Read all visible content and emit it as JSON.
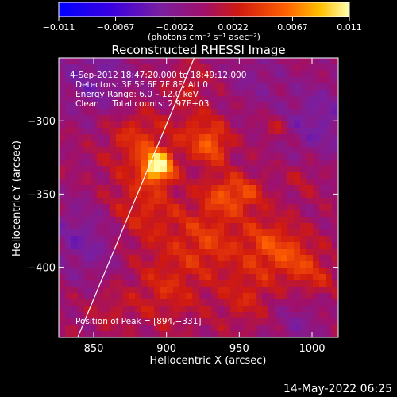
{
  "footer_timestamp": "14-May-2022 06:25",
  "colors": {
    "background": "#000000",
    "frame": "#ffffff",
    "limb_line": "#ffffff",
    "colormap": [
      "#0000ff",
      "#5500cc",
      "#7a1fa0",
      "#a0106a",
      "#d01a10",
      "#ff6000",
      "#ffc000",
      "#ffffb0"
    ]
  },
  "chart_data": {
    "type": "heatmap",
    "title": "Reconstructed RHESSI Image",
    "xlabel": "Heliocentric X (arcsec)",
    "ylabel": "Heliocentric Y (arcsec)",
    "xlim": [
      826,
      1018
    ],
    "ylim": [
      -448,
      -257
    ],
    "xticks": [
      850,
      900,
      950,
      1000
    ],
    "yticks": [
      -300,
      -350,
      -400
    ],
    "grid": false,
    "colorbar": {
      "position": "top",
      "range": [
        -0.011,
        0.011
      ],
      "tick_values": [
        -0.011,
        -0.0067,
        -0.0022,
        0.0022,
        0.0067,
        0.011
      ],
      "tick_labels": [
        "−0.011",
        "−0.0067",
        "−0.0022",
        "0.0022",
        "0.0067",
        "0.011"
      ],
      "label": "(photons cm⁻² s⁻¹ asec⁻²)"
    },
    "annotations": [
      "4-Sep-2012 18:47:20.000 to 18:49:12.000",
      "Detectors: 3F 5F 6F 7F 8F, Att 0",
      "Energy Range: 6.0 – 12.0 keV",
      "Clean     Total counts: 2.97E+03"
    ],
    "peak_label": "Position of Peak = [894,−331]",
    "peak": {
      "x": 894,
      "y": -331,
      "value": 0.011
    },
    "limb_line": [
      [
        839,
        -448
      ],
      [
        919,
        -257
      ]
    ],
    "sources": [
      {
        "x": 894,
        "y": -331,
        "sigma": 7,
        "amp": 0.011
      },
      {
        "x": 880,
        "y": -312,
        "sigma": 14,
        "amp": 0.0035
      },
      {
        "x": 882,
        "y": -360,
        "sigma": 20,
        "amp": 0.0034
      },
      {
        "x": 922,
        "y": -308,
        "sigma": 12,
        "amp": 0.0032
      },
      {
        "x": 932,
        "y": -318,
        "sigma": 8,
        "amp": 0.004
      },
      {
        "x": 938,
        "y": -350,
        "sigma": 10,
        "amp": 0.0038
      },
      {
        "x": 955,
        "y": -350,
        "sigma": 9,
        "amp": 0.0034
      },
      {
        "x": 928,
        "y": -382,
        "sigma": 16,
        "amp": 0.0036
      },
      {
        "x": 970,
        "y": -385,
        "sigma": 14,
        "amp": 0.0042
      },
      {
        "x": 990,
        "y": -395,
        "sigma": 11,
        "amp": 0.003
      },
      {
        "x": 900,
        "y": -415,
        "sigma": 17,
        "amp": 0.0028
      },
      {
        "x": 955,
        "y": -420,
        "sigma": 14,
        "amp": 0.0026
      },
      {
        "x": 862,
        "y": -428,
        "sigma": 10,
        "amp": 0.0016
      },
      {
        "x": 1003,
        "y": -408,
        "sigma": 10,
        "amp": 0.0022
      },
      {
        "x": 975,
        "y": -305,
        "sigma": 6,
        "amp": 0.0025
      },
      {
        "x": 994,
        "y": -338,
        "sigma": 8,
        "amp": 0.0018
      },
      {
        "x": 915,
        "y": -275,
        "sigma": 9,
        "amp": 0.0022
      }
    ],
    "negative_regions": [
      {
        "x": 850,
        "y": -270,
        "sigma": 20,
        "amp": -0.003
      },
      {
        "x": 845,
        "y": -380,
        "sigma": 20,
        "amp": -0.0034
      },
      {
        "x": 1005,
        "y": -300,
        "sigma": 20,
        "amp": -0.0032
      },
      {
        "x": 990,
        "y": -440,
        "sigma": 14,
        "amp": -0.0022
      },
      {
        "x": 960,
        "y": -270,
        "sigma": 14,
        "amp": -0.002
      }
    ]
  }
}
